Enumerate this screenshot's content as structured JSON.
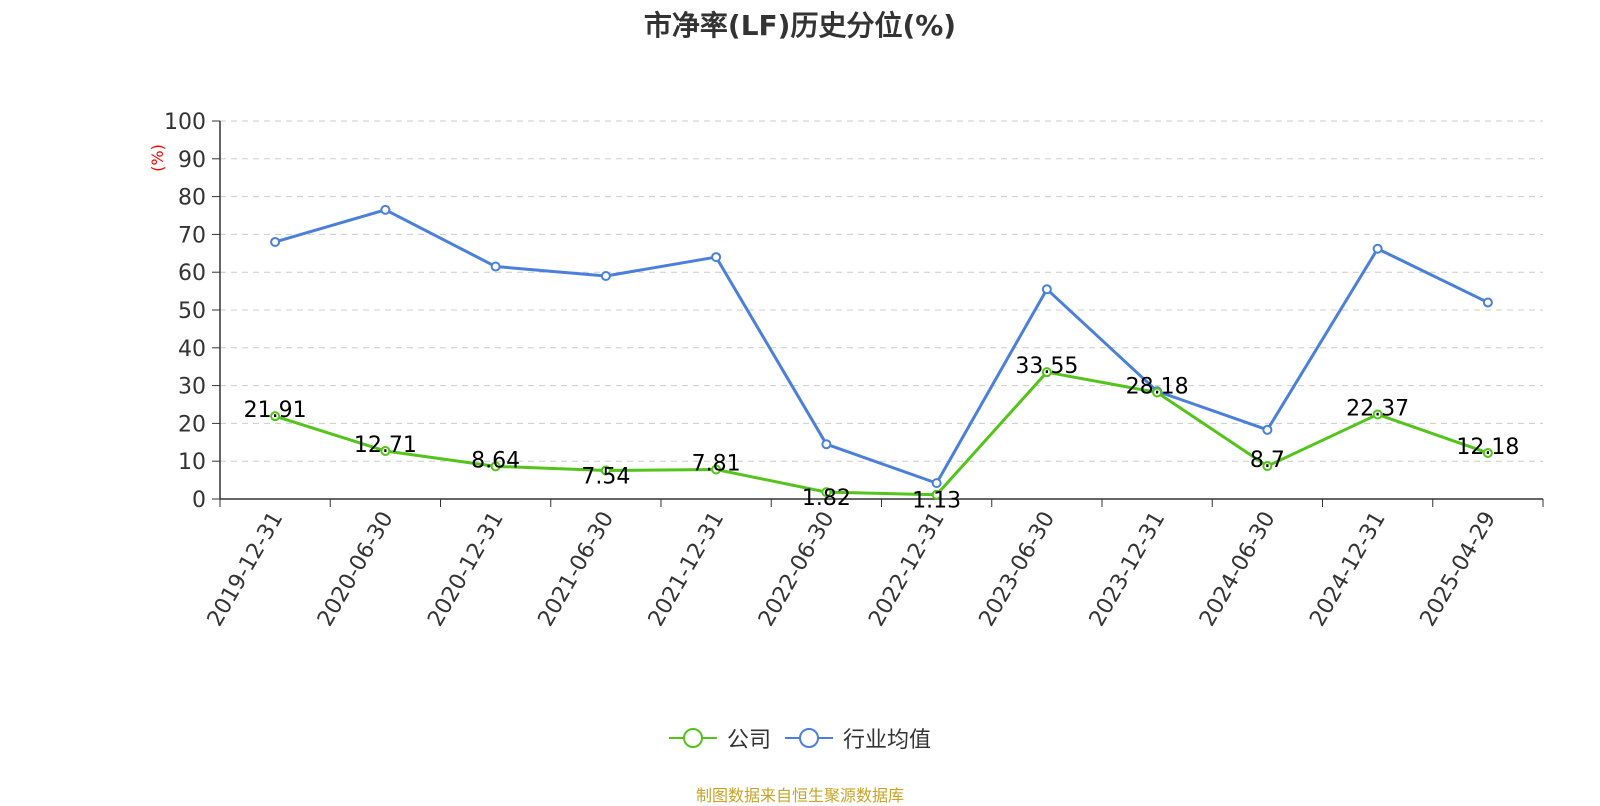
{
  "chart_data": {
    "type": "line",
    "title": "市净率(LF)历史分位(%)",
    "ylabel": "(%)",
    "xlabel": "",
    "ylim": [
      0,
      100
    ],
    "yticks": [
      0,
      10,
      20,
      30,
      40,
      50,
      60,
      70,
      80,
      90,
      100
    ],
    "categories": [
      "2019-12-31",
      "2020-06-30",
      "2020-12-31",
      "2021-06-30",
      "2021-12-31",
      "2022-06-30",
      "2022-12-31",
      "2023-06-30",
      "2023-12-31",
      "2024-06-30",
      "2024-12-31",
      "2025-04-29"
    ],
    "series": [
      {
        "name": "公司",
        "color": "#52c41a",
        "values": [
          21.91,
          12.71,
          8.64,
          7.54,
          7.81,
          1.82,
          1.13,
          33.55,
          28.18,
          8.7,
          22.37,
          12.18
        ],
        "labels": [
          "21.91",
          "12.71",
          "8.64",
          "7.54",
          "7.81",
          "1.82",
          "1.13",
          "33.55",
          "28.18",
          "8.7",
          "22.37",
          "12.18"
        ]
      },
      {
        "name": "行业均值",
        "color": "#4a7fdc",
        "values": [
          68,
          76.5,
          61.5,
          59,
          64,
          14.5,
          4.2,
          55.5,
          28.5,
          18.3,
          66.2,
          52
        ]
      }
    ],
    "grid": true,
    "legend_position": "bottom-center"
  },
  "legend": {
    "company": "公司",
    "industry": "行业均值"
  },
  "source_note": "制图数据来自恒生聚源数据库",
  "colors": {
    "axis": "#333333",
    "grid": "#cccccc",
    "ylabel": "#ff0000",
    "source": "#c9a227"
  }
}
